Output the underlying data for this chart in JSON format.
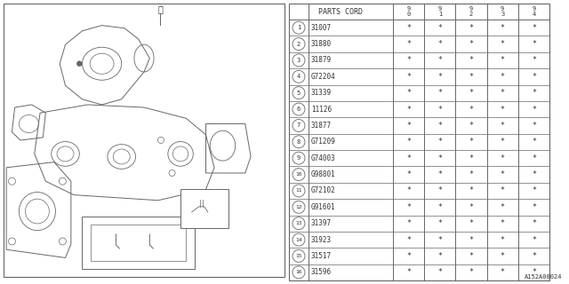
{
  "diagram_label": "A152A00024",
  "parts_header": "PARTS CORD",
  "year_cols": [
    "9\n0",
    "9\n1",
    "9\n2",
    "9\n3",
    "9\n4"
  ],
  "parts": [
    {
      "num": 1,
      "code": "31007"
    },
    {
      "num": 2,
      "code": "31880"
    },
    {
      "num": 3,
      "code": "31879"
    },
    {
      "num": 4,
      "code": "G72204"
    },
    {
      "num": 5,
      "code": "31339"
    },
    {
      "num": 6,
      "code": "11126"
    },
    {
      "num": 7,
      "code": "31877"
    },
    {
      "num": 8,
      "code": "G71209"
    },
    {
      "num": 9,
      "code": "G74003"
    },
    {
      "num": 10,
      "code": "G98801"
    },
    {
      "num": 11,
      "code": "G72102"
    },
    {
      "num": 12,
      "code": "G91601"
    },
    {
      "num": 13,
      "code": "31397"
    },
    {
      "num": 14,
      "code": "31923"
    },
    {
      "num": 15,
      "code": "31517"
    },
    {
      "num": 16,
      "code": "31596"
    }
  ],
  "bg_color": "#ffffff",
  "line_color": "#666666",
  "text_color": "#333333"
}
